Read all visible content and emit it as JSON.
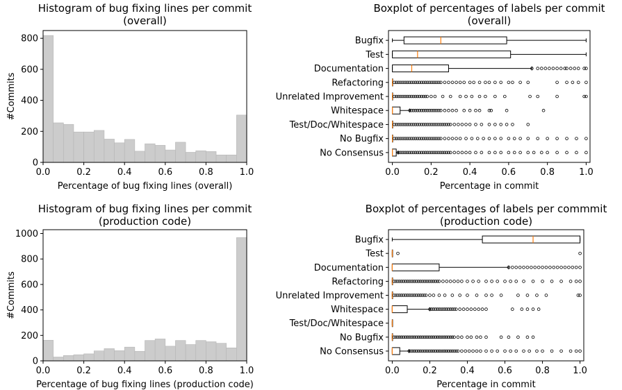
{
  "chart_data": [
    {
      "type": "bar",
      "title": "Histogram of bug fixing lines per commit\n(overall)",
      "xlabel": "Percentage of bug fixing lines (overall)",
      "ylabel": "#Commits",
      "xlim": [
        0.0,
        1.0
      ],
      "ylim": [
        0,
        850
      ],
      "xticks": [
        "0.0",
        "0.2",
        "0.4",
        "0.6",
        "0.8",
        "1.0"
      ],
      "xtick_values": [
        0.0,
        0.2,
        0.4,
        0.6,
        0.8,
        1.0
      ],
      "yticks": [
        "0",
        "200",
        "400",
        "600",
        "800"
      ],
      "ytick_values": [
        0,
        200,
        400,
        600,
        800
      ],
      "bar_color": "#cccccc",
      "bin_edges": [
        0.0,
        0.05,
        0.1,
        0.15,
        0.2,
        0.25,
        0.3,
        0.35,
        0.4,
        0.45,
        0.5,
        0.55,
        0.6,
        0.65,
        0.7,
        0.75,
        0.8,
        0.85,
        0.9,
        0.95,
        1.0
      ],
      "values": [
        818,
        255,
        245,
        196,
        196,
        206,
        150,
        126,
        148,
        72,
        120,
        110,
        80,
        130,
        65,
        75,
        70,
        48,
        48,
        305
      ]
    },
    {
      "type": "boxplot",
      "title": "Boxplot of percentages of labels per commit\n(overall)",
      "xlabel": "Percentage in commit",
      "xlim": [
        -0.02,
        1.02
      ],
      "xticks": [
        "0.0",
        "0.2",
        "0.4",
        "0.6",
        "0.8",
        "1.0"
      ],
      "xtick_values": [
        0.0,
        0.2,
        0.4,
        0.6,
        0.8,
        1.0
      ],
      "median_color": "#ff7f0e",
      "categories": [
        "Bugfix",
        "Test",
        "Documentation",
        "Refactoring",
        "Unrelated Improvement",
        "Whitespace",
        "Test/Doc/Whitespace",
        "No Bugfix",
        "No Consensus"
      ],
      "boxes": [
        {
          "whislo": 0.0,
          "q1": 0.06,
          "med": 0.25,
          "q3": 0.59,
          "whishi": 1.0,
          "fliers": []
        },
        {
          "whislo": 0.0,
          "q1": 0.0,
          "med": 0.13,
          "q3": 0.61,
          "whishi": 1.0,
          "fliers": []
        },
        {
          "whislo": 0.0,
          "q1": 0.0,
          "med": 0.1,
          "q3": 0.29,
          "whishi": 0.72,
          "fliers": [
            0.72,
            0.75,
            0.77,
            0.79,
            0.81,
            0.83,
            0.85,
            0.87,
            0.89,
            0.9,
            0.92,
            0.94,
            0.96,
            0.99,
            1.0
          ]
        },
        {
          "whislo": 0.0,
          "q1": 0.0,
          "med": 0.0,
          "q3": 0.0,
          "whishi": 0.0,
          "fliers": [
            0.01,
            0.02,
            0.03,
            0.04,
            0.05,
            0.06,
            0.07,
            0.08,
            0.09,
            0.1,
            0.11,
            0.12,
            0.13,
            0.14,
            0.15,
            0.16,
            0.17,
            0.18,
            0.19,
            0.2,
            0.21,
            0.22,
            0.23,
            0.24,
            0.25,
            0.27,
            0.29,
            0.31,
            0.33,
            0.35,
            0.37,
            0.4,
            0.42,
            0.45,
            0.48,
            0.5,
            0.53,
            0.56,
            0.6,
            0.62,
            0.66,
            0.7,
            0.85,
            0.9,
            0.93,
            0.96,
            1.0
          ]
        },
        {
          "whislo": 0.0,
          "q1": 0.0,
          "med": 0.0,
          "q3": 0.0,
          "whishi": 0.0,
          "fliers": [
            0.01,
            0.02,
            0.03,
            0.04,
            0.05,
            0.06,
            0.07,
            0.08,
            0.09,
            0.1,
            0.11,
            0.12,
            0.13,
            0.14,
            0.15,
            0.16,
            0.17,
            0.18,
            0.2,
            0.22,
            0.26,
            0.3,
            0.35,
            0.38,
            0.41,
            0.45,
            0.48,
            0.53,
            0.58,
            0.71,
            0.75,
            0.85,
            0.99,
            1.0
          ]
        },
        {
          "whislo": 0.0,
          "q1": 0.0,
          "med": 0.0,
          "q3": 0.04,
          "whishi": 0.09,
          "fliers": [
            0.09,
            0.1,
            0.11,
            0.12,
            0.13,
            0.14,
            0.15,
            0.16,
            0.17,
            0.18,
            0.19,
            0.2,
            0.21,
            0.22,
            0.23,
            0.24,
            0.25,
            0.27,
            0.29,
            0.31,
            0.33,
            0.37,
            0.4,
            0.43,
            0.45,
            0.5,
            0.51,
            0.59,
            0.78
          ]
        },
        {
          "whislo": 0.0,
          "q1": 0.0,
          "med": 0.0,
          "q3": 0.0,
          "whishi": 0.0,
          "fliers": [
            0.01,
            0.02,
            0.03,
            0.04,
            0.05,
            0.06,
            0.07,
            0.08,
            0.09,
            0.1,
            0.11,
            0.12,
            0.13,
            0.14,
            0.15,
            0.16,
            0.17,
            0.18,
            0.19,
            0.2,
            0.21,
            0.22,
            0.23,
            0.24,
            0.25,
            0.26,
            0.27,
            0.28,
            0.29,
            0.3,
            0.32,
            0.34,
            0.36,
            0.38,
            0.4,
            0.43,
            0.46,
            0.5,
            0.53,
            0.56,
            0.59,
            0.62,
            0.7
          ]
        },
        {
          "whislo": 0.0,
          "q1": 0.0,
          "med": 0.0,
          "q3": 0.0,
          "whishi": 0.0,
          "fliers": [
            0.01,
            0.02,
            0.03,
            0.04,
            0.05,
            0.06,
            0.07,
            0.08,
            0.09,
            0.1,
            0.11,
            0.12,
            0.13,
            0.14,
            0.15,
            0.16,
            0.17,
            0.18,
            0.19,
            0.2,
            0.21,
            0.22,
            0.23,
            0.24,
            0.25,
            0.27,
            0.29,
            0.31,
            0.33,
            0.35,
            0.38,
            0.41,
            0.44,
            0.47,
            0.5,
            0.53,
            0.56,
            0.6,
            0.63,
            0.66,
            0.7,
            0.75,
            0.8,
            0.85,
            0.9,
            0.95,
            1.0
          ]
        },
        {
          "whislo": 0.0,
          "q1": 0.0,
          "med": 0.0,
          "q3": 0.02,
          "whishi": 0.03,
          "fliers": [
            0.03,
            0.04,
            0.05,
            0.06,
            0.07,
            0.08,
            0.09,
            0.1,
            0.11,
            0.12,
            0.13,
            0.14,
            0.15,
            0.16,
            0.17,
            0.18,
            0.19,
            0.2,
            0.21,
            0.22,
            0.23,
            0.24,
            0.25,
            0.26,
            0.27,
            0.28,
            0.29,
            0.3,
            0.32,
            0.34,
            0.36,
            0.38,
            0.4,
            0.43,
            0.46,
            0.5,
            0.53,
            0.56,
            0.6,
            0.63,
            0.66,
            0.7,
            0.73,
            0.77,
            0.8,
            0.85,
            0.9,
            0.95,
            1.0
          ]
        }
      ]
    },
    {
      "type": "bar",
      "title": "Histogram of bug fixing lines per commit\n(production code)",
      "xlabel": "Percentage of bug fixing lines (production code)",
      "ylabel": "#Commits",
      "xlim": [
        0.0,
        1.0
      ],
      "ylim": [
        0,
        1030
      ],
      "xticks": [
        "0.0",
        "0.2",
        "0.4",
        "0.6",
        "0.8",
        "1.0"
      ],
      "xtick_values": [
        0.0,
        0.2,
        0.4,
        0.6,
        0.8,
        1.0
      ],
      "yticks": [
        "0",
        "200",
        "400",
        "600",
        "800",
        "1000"
      ],
      "ytick_values": [
        0,
        200,
        400,
        600,
        800,
        1000
      ],
      "bar_color": "#cccccc",
      "bin_edges": [
        0.0,
        0.05,
        0.1,
        0.15,
        0.2,
        0.25,
        0.3,
        0.35,
        0.4,
        0.45,
        0.5,
        0.55,
        0.6,
        0.65,
        0.7,
        0.75,
        0.8,
        0.85,
        0.9,
        0.95,
        1.0
      ],
      "values": [
        162,
        30,
        42,
        48,
        55,
        78,
        96,
        80,
        108,
        75,
        160,
        172,
        115,
        160,
        128,
        160,
        150,
        138,
        102,
        968
      ]
    },
    {
      "type": "boxplot",
      "title": "Boxplot of percentages of labels per commmit\n(production code)",
      "xlabel": "Percentage in commit",
      "xlim": [
        -0.02,
        1.02
      ],
      "xticks": [
        "0.0",
        "0.2",
        "0.4",
        "0.6",
        "0.8",
        "1.0"
      ],
      "xtick_values": [
        0.0,
        0.2,
        0.4,
        0.6,
        0.8,
        1.0
      ],
      "median_color": "#ff7f0e",
      "categories": [
        "Bugfix",
        "Test",
        "Documentation",
        "Refactoring",
        "Unrelated Improvement",
        "Whitespace",
        "Test/Doc/Whitespace",
        "No Bugfix",
        "No Consensus"
      ],
      "boxes": [
        {
          "whislo": 0.0,
          "q1": 0.48,
          "med": 0.75,
          "q3": 1.0,
          "whishi": 1.0,
          "fliers": []
        },
        {
          "whislo": 0.0,
          "q1": 0.0,
          "med": 0.0,
          "q3": 0.0,
          "whishi": 0.0,
          "fliers": [
            0.03,
            1.0
          ]
        },
        {
          "whislo": 0.0,
          "q1": 0.0,
          "med": 0.0,
          "q3": 0.25,
          "whishi": 0.62,
          "fliers": [
            0.62,
            0.64,
            0.66,
            0.68,
            0.7,
            0.72,
            0.74,
            0.76,
            0.78,
            0.8,
            0.82,
            0.84,
            0.86,
            0.88,
            0.9,
            0.92,
            0.94,
            0.96,
            0.98,
            1.0
          ]
        },
        {
          "whislo": 0.0,
          "q1": 0.0,
          "med": 0.0,
          "q3": 0.0,
          "whishi": 0.0,
          "fliers": [
            0.01,
            0.02,
            0.03,
            0.04,
            0.05,
            0.06,
            0.07,
            0.08,
            0.09,
            0.1,
            0.11,
            0.12,
            0.13,
            0.14,
            0.15,
            0.16,
            0.17,
            0.18,
            0.19,
            0.2,
            0.21,
            0.22,
            0.23,
            0.24,
            0.25,
            0.27,
            0.29,
            0.31,
            0.33,
            0.35,
            0.37,
            0.4,
            0.43,
            0.46,
            0.5,
            0.53,
            0.56,
            0.6,
            0.63,
            0.66,
            0.7,
            0.75,
            0.8,
            0.85,
            0.9,
            0.95,
            0.98,
            1.0
          ]
        },
        {
          "whislo": 0.0,
          "q1": 0.0,
          "med": 0.0,
          "q3": 0.0,
          "whishi": 0.0,
          "fliers": [
            0.01,
            0.02,
            0.03,
            0.04,
            0.05,
            0.06,
            0.07,
            0.08,
            0.09,
            0.1,
            0.11,
            0.12,
            0.13,
            0.14,
            0.15,
            0.16,
            0.17,
            0.18,
            0.2,
            0.22,
            0.25,
            0.28,
            0.32,
            0.36,
            0.4,
            0.45,
            0.5,
            0.53,
            0.58,
            0.67,
            0.72,
            0.77,
            0.82,
            0.99,
            1.0
          ]
        },
        {
          "whislo": 0.0,
          "q1": 0.0,
          "med": 0.0,
          "q3": 0.08,
          "whishi": 0.2,
          "fliers": [
            0.2,
            0.21,
            0.22,
            0.23,
            0.24,
            0.25,
            0.26,
            0.27,
            0.28,
            0.29,
            0.3,
            0.31,
            0.32,
            0.33,
            0.34,
            0.36,
            0.38,
            0.4,
            0.42,
            0.44,
            0.46,
            0.48,
            0.5,
            0.64,
            0.69,
            0.72,
            0.75,
            0.78
          ]
        },
        {
          "whislo": 0.0,
          "q1": 0.0,
          "med": 0.0,
          "q3": 0.0,
          "whishi": 0.0,
          "fliers": []
        },
        {
          "whislo": 0.0,
          "q1": 0.0,
          "med": 0.0,
          "q3": 0.0,
          "whishi": 0.0,
          "fliers": [
            0.01,
            0.02,
            0.03,
            0.04,
            0.05,
            0.06,
            0.07,
            0.08,
            0.09,
            0.1,
            0.11,
            0.12,
            0.13,
            0.14,
            0.15,
            0.16,
            0.17,
            0.18,
            0.19,
            0.2,
            0.21,
            0.22,
            0.23,
            0.24,
            0.25,
            0.26,
            0.27,
            0.28,
            0.29,
            0.3,
            0.31,
            0.32,
            0.33,
            0.35,
            0.37,
            0.4,
            0.42,
            0.45,
            0.47,
            0.5,
            0.58,
            0.62,
            0.67,
            0.72,
            0.75
          ]
        },
        {
          "whislo": 0.0,
          "q1": 0.0,
          "med": 0.0,
          "q3": 0.04,
          "whishi": 0.09,
          "fliers": [
            0.09,
            0.1,
            0.11,
            0.12,
            0.13,
            0.14,
            0.15,
            0.16,
            0.17,
            0.18,
            0.19,
            0.2,
            0.21,
            0.22,
            0.23,
            0.24,
            0.25,
            0.26,
            0.27,
            0.28,
            0.29,
            0.3,
            0.31,
            0.32,
            0.33,
            0.34,
            0.35,
            0.37,
            0.39,
            0.41,
            0.43,
            0.45,
            0.47,
            0.5,
            0.53,
            0.56,
            0.6,
            0.63,
            0.66,
            0.7,
            0.73,
            0.77,
            0.8,
            0.85,
            0.9,
            0.95,
            0.98,
            1.0
          ]
        }
      ]
    }
  ]
}
